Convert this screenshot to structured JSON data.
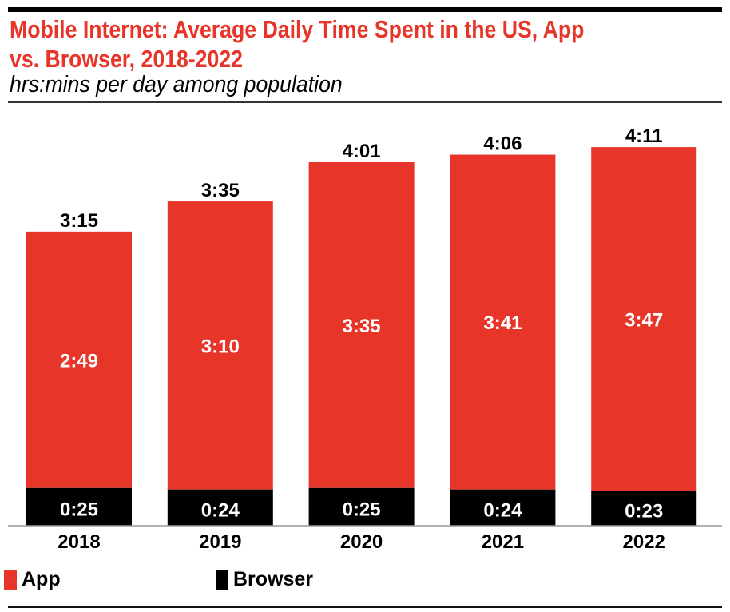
{
  "title_line1": "Mobile Internet: Average Daily Time Spent in the US, App",
  "title_line2": "vs. Browser, 2018-2022",
  "subtitle": "hrs:mins per day among population",
  "colors": {
    "app": "#e8352a",
    "browser": "#000000",
    "title": "#e8352a"
  },
  "chart_data": {
    "type": "bar",
    "stacked": true,
    "categories": [
      "2018",
      "2019",
      "2020",
      "2021",
      "2022"
    ],
    "unit": "minutes per day",
    "series": [
      {
        "name": "Browser",
        "values": [
          25,
          24,
          25,
          24,
          23
        ],
        "labels": [
          "0:25",
          "0:24",
          "0:25",
          "0:24",
          "0:23"
        ],
        "color": "#000000"
      },
      {
        "name": "App",
        "values": [
          169,
          190,
          215,
          221,
          227
        ],
        "labels": [
          "2:49",
          "3:10",
          "3:35",
          "3:41",
          "3:47"
        ],
        "color": "#e8352a"
      }
    ],
    "totals": [
      195,
      215,
      241,
      246,
      251
    ],
    "total_labels": [
      "3:15",
      "3:35",
      "4:01",
      "4:06",
      "4:11"
    ],
    "grid": false,
    "legend_placement": "bottom-left",
    "legend": [
      "App",
      "Browser"
    ]
  }
}
